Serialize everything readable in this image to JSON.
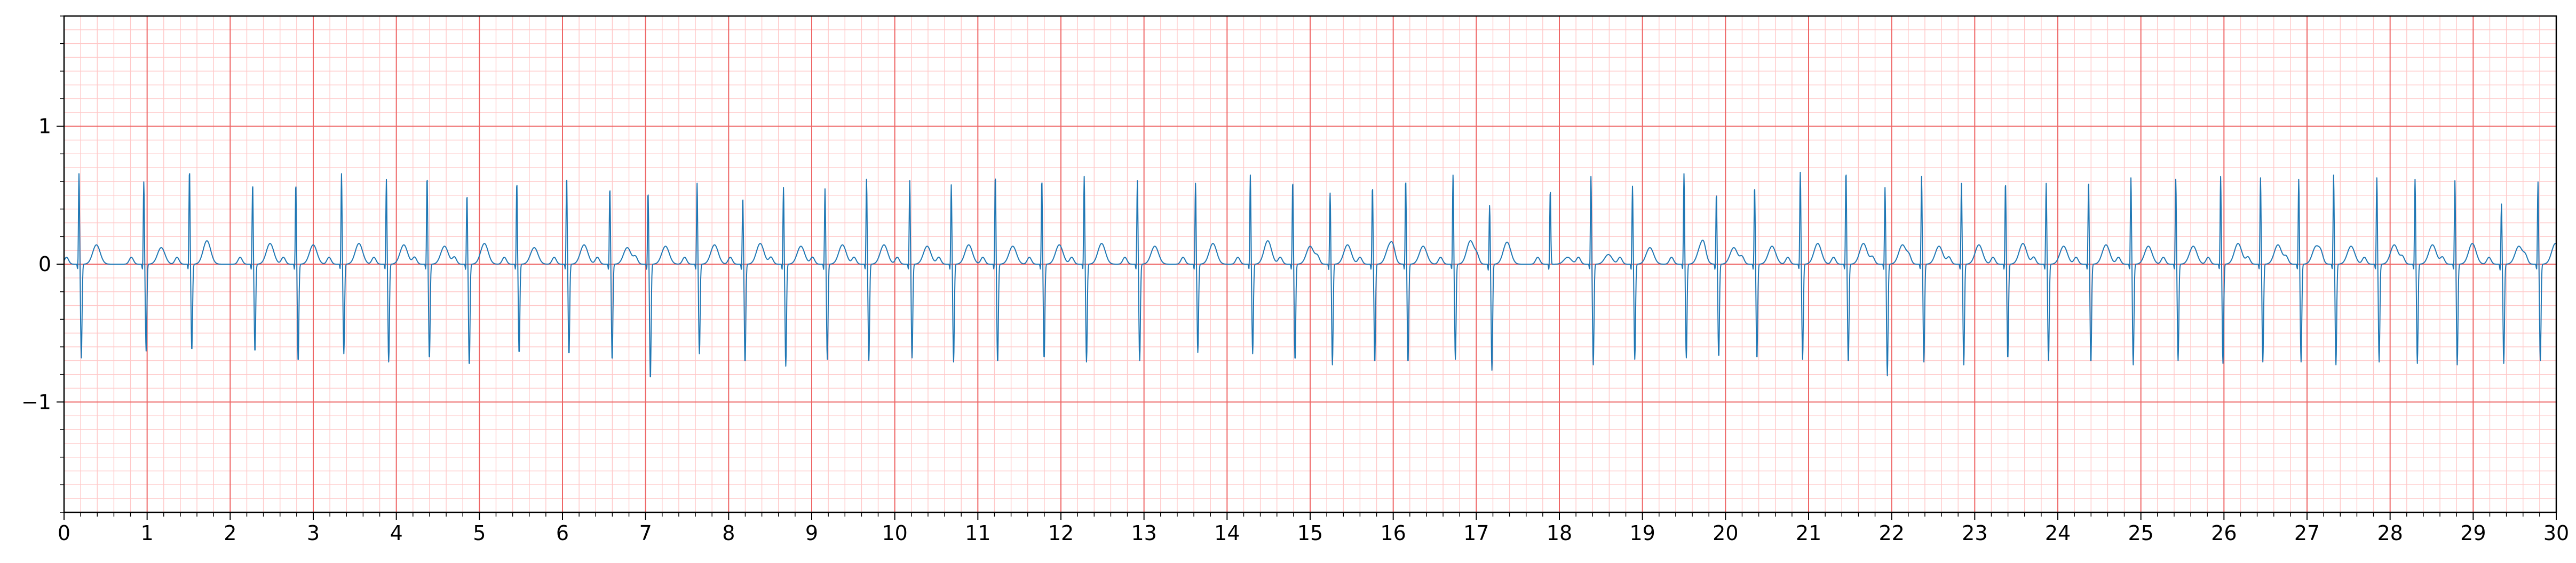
{
  "chart_data": {
    "type": "line",
    "title": "",
    "xlabel": "",
    "ylabel": "",
    "xlim": [
      0,
      30
    ],
    "ylim": [
      -1.8,
      1.8
    ],
    "x_ticks": [
      "0",
      "1",
      "2",
      "3",
      "4",
      "5",
      "6",
      "7",
      "8",
      "9",
      "10",
      "11",
      "12",
      "13",
      "14",
      "15",
      "16",
      "17",
      "18",
      "19",
      "20",
      "21",
      "22",
      "23",
      "24",
      "25",
      "26",
      "27",
      "28",
      "29",
      "30"
    ],
    "y_ticks": [
      "1",
      "0",
      "−1"
    ],
    "y_tick_values": [
      1,
      0,
      -1
    ],
    "grid": {
      "on": true,
      "major_x_step": 1,
      "major_y_step": 1,
      "minor_x_step": 0.2,
      "minor_y_step": 0.1,
      "major_color": "#ee6666",
      "minor_color": "#ffc8c8"
    },
    "series": [
      {
        "color": "#1f77b4",
        "sample_interval_s": 0.004,
        "beats": [
          {
            "t": 0.18,
            "r": 0.67,
            "s": -0.68,
            "tw": 0.14
          },
          {
            "t": 0.96,
            "r": 0.61,
            "s": -0.63,
            "tw": 0.12
          },
          {
            "t": 1.51,
            "r": 0.7,
            "s": -0.63,
            "tw": 0.17
          },
          {
            "t": 2.27,
            "r": 0.6,
            "s": -0.64,
            "tw": 0.15
          },
          {
            "t": 2.79,
            "r": 0.6,
            "s": -0.71,
            "tw": 0.14
          },
          {
            "t": 3.34,
            "r": 0.67,
            "s": -0.65,
            "tw": 0.15
          },
          {
            "t": 3.88,
            "r": 0.63,
            "s": -0.71,
            "tw": 0.14
          },
          {
            "t": 4.37,
            "r": 0.65,
            "s": -0.69,
            "tw": 0.13
          },
          {
            "t": 4.85,
            "r": 0.52,
            "s": -0.74,
            "tw": 0.15
          },
          {
            "t": 5.45,
            "r": 0.61,
            "s": -0.65,
            "tw": 0.12
          },
          {
            "t": 6.05,
            "r": 0.65,
            "s": -0.66,
            "tw": 0.14
          },
          {
            "t": 6.57,
            "r": 0.57,
            "s": -0.7,
            "tw": 0.12
          },
          {
            "t": 7.03,
            "r": 0.54,
            "s": -0.84,
            "tw": 0.13
          },
          {
            "t": 7.62,
            "r": 0.6,
            "s": -0.65,
            "tw": 0.14
          },
          {
            "t": 8.17,
            "r": 0.5,
            "s": -0.72,
            "tw": 0.15
          },
          {
            "t": 8.66,
            "r": 0.57,
            "s": -0.74,
            "tw": 0.13
          },
          {
            "t": 9.16,
            "r": 0.56,
            "s": -0.69,
            "tw": 0.14
          },
          {
            "t": 9.66,
            "r": 0.63,
            "s": -0.7,
            "tw": 0.14
          },
          {
            "t": 10.18,
            "r": 0.62,
            "s": -0.68,
            "tw": 0.13
          },
          {
            "t": 10.68,
            "r": 0.59,
            "s": -0.71,
            "tw": 0.14
          },
          {
            "t": 11.21,
            "r": 0.66,
            "s": -0.72,
            "tw": 0.13
          },
          {
            "t": 11.77,
            "r": 0.63,
            "s": -0.69,
            "tw": 0.14
          },
          {
            "t": 12.28,
            "r": 0.65,
            "s": -0.71,
            "tw": 0.15
          },
          {
            "t": 12.92,
            "r": 0.62,
            "s": -0.7,
            "tw": 0.13
          },
          {
            "t": 13.62,
            "r": 0.6,
            "s": -0.64,
            "tw": 0.15
          },
          {
            "t": 14.28,
            "r": 0.66,
            "s": -0.65,
            "tw": 0.17
          },
          {
            "t": 14.79,
            "r": 0.62,
            "s": -0.7,
            "tw": 0.13
          },
          {
            "t": 15.24,
            "r": 0.53,
            "s": -0.73,
            "tw": 0.14
          },
          {
            "t": 15.75,
            "r": 0.58,
            "s": -0.72,
            "tw": 0.14
          },
          {
            "t": 16.15,
            "r": 0.63,
            "s": -0.72,
            "tw": 0.13
          },
          {
            "t": 16.72,
            "r": 0.66,
            "s": -0.69,
            "tw": 0.17
          },
          {
            "t": 17.16,
            "r": 0.44,
            "s": -0.77,
            "tw": 0.16
          },
          {
            "t": 17.89,
            "r": 0.55,
            "s": 0.0,
            "tw": 0.05
          },
          {
            "t": 18.38,
            "r": 0.65,
            "s": -0.73,
            "tw": 0.07
          },
          {
            "t": 18.88,
            "r": 0.58,
            "s": -0.69,
            "tw": 0.12
          },
          {
            "t": 19.5,
            "r": 0.67,
            "s": -0.68,
            "tw": 0.14
          },
          {
            "t": 19.89,
            "r": 0.53,
            "s": -0.68,
            "tw": 0.12
          },
          {
            "t": 20.35,
            "r": 0.58,
            "s": -0.69,
            "tw": 0.13
          },
          {
            "t": 20.9,
            "r": 0.68,
            "s": -0.69,
            "tw": 0.15
          },
          {
            "t": 21.45,
            "r": 0.69,
            "s": -0.72,
            "tw": 0.15
          },
          {
            "t": 21.92,
            "r": 0.57,
            "s": -0.81,
            "tw": 0.14
          },
          {
            "t": 22.36,
            "r": 0.65,
            "s": -0.71,
            "tw": 0.13
          },
          {
            "t": 22.84,
            "r": 0.6,
            "s": -0.73,
            "tw": 0.14
          },
          {
            "t": 23.37,
            "r": 0.61,
            "s": -0.69,
            "tw": 0.15
          },
          {
            "t": 23.86,
            "r": 0.6,
            "s": -0.7,
            "tw": 0.13
          },
          {
            "t": 24.37,
            "r": 0.62,
            "s": -0.72,
            "tw": 0.14
          },
          {
            "t": 24.88,
            "r": 0.64,
            "s": -0.73,
            "tw": 0.13
          },
          {
            "t": 25.42,
            "r": 0.63,
            "s": -0.7,
            "tw": 0.13
          },
          {
            "t": 25.96,
            "r": 0.65,
            "s": -0.72,
            "tw": 0.15
          },
          {
            "t": 26.44,
            "r": 0.64,
            "s": -0.71,
            "tw": 0.14
          },
          {
            "t": 26.9,
            "r": 0.63,
            "s": -0.71,
            "tw": 0.13
          },
          {
            "t": 27.32,
            "r": 0.66,
            "s": -0.73,
            "tw": 0.13
          },
          {
            "t": 27.84,
            "r": 0.64,
            "s": -0.71,
            "tw": 0.14
          },
          {
            "t": 28.3,
            "r": 0.63,
            "s": -0.72,
            "tw": 0.14
          },
          {
            "t": 28.78,
            "r": 0.62,
            "s": -0.73,
            "tw": 0.15
          },
          {
            "t": 29.34,
            "r": 0.45,
            "s": -0.72,
            "tw": 0.13
          },
          {
            "t": 29.78,
            "r": 0.61,
            "s": -0.7,
            "tw": 0.15
          }
        ]
      }
    ]
  }
}
